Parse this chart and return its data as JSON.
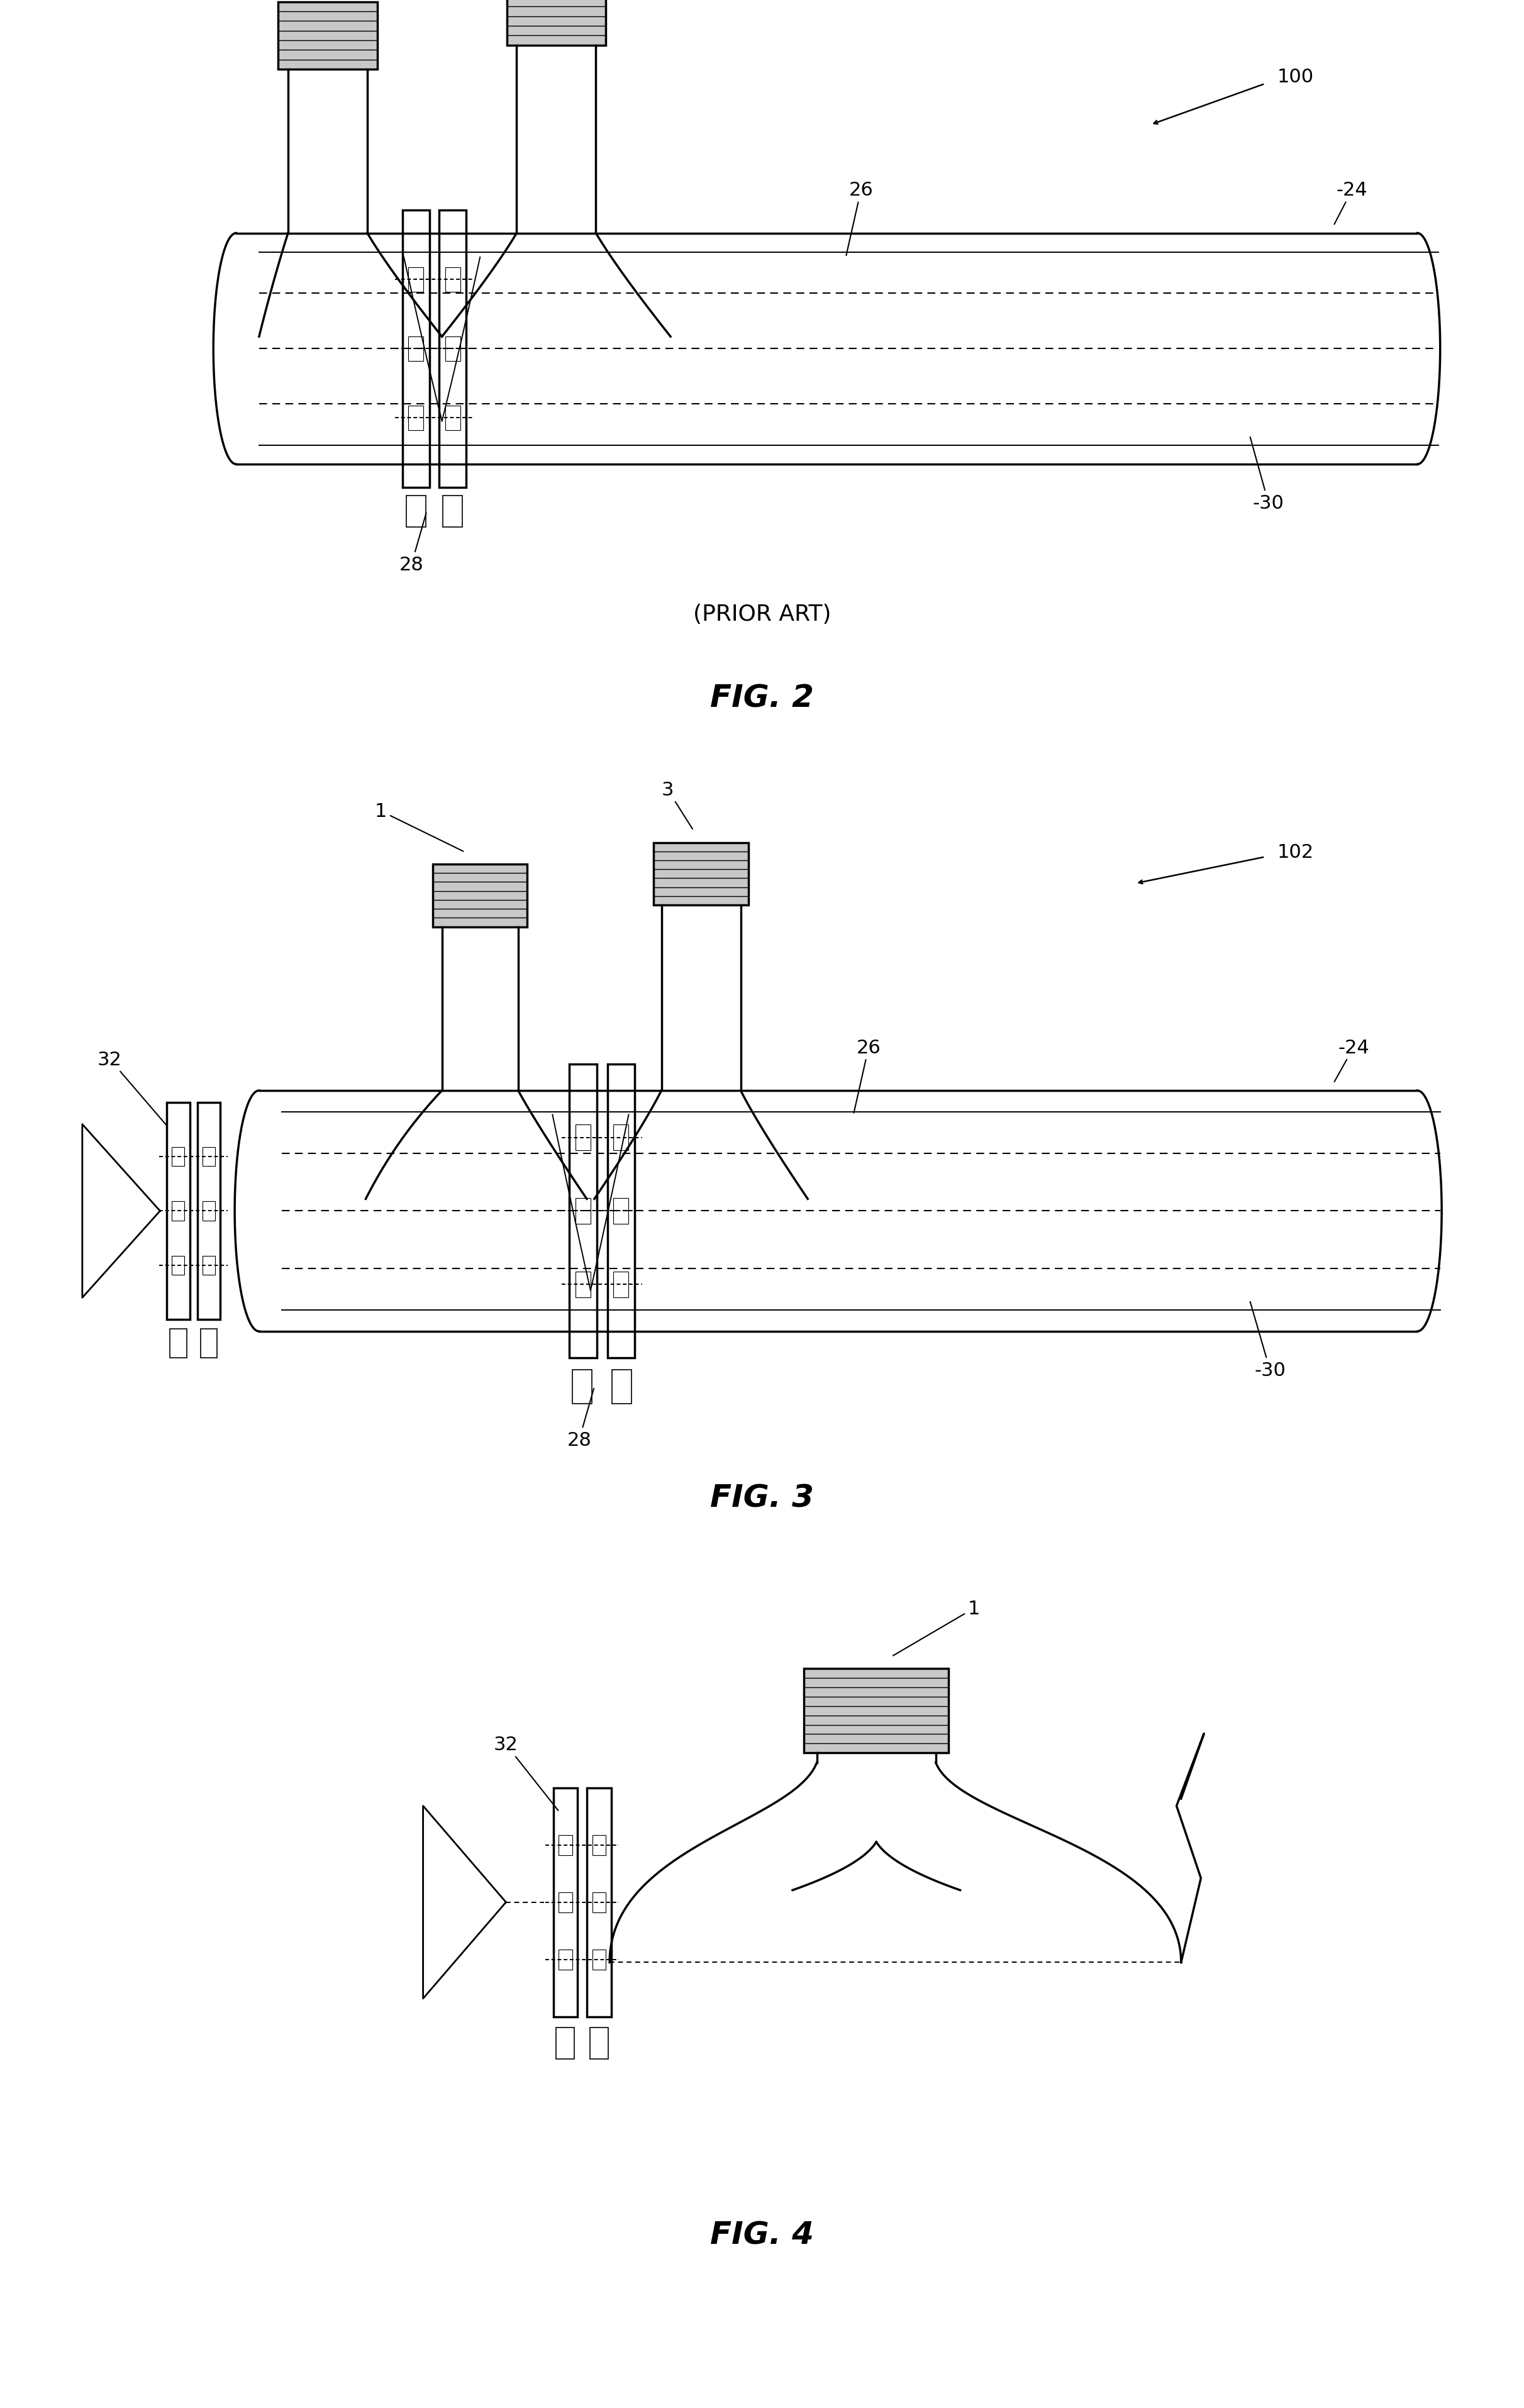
{
  "bg_color": "#ffffff",
  "line_color": "#000000",
  "fig2_prior_art": "(PRIOR ART)",
  "fig2_name": "FIG. 2",
  "fig3_name": "FIG. 3",
  "fig4_name": "FIG. 4"
}
